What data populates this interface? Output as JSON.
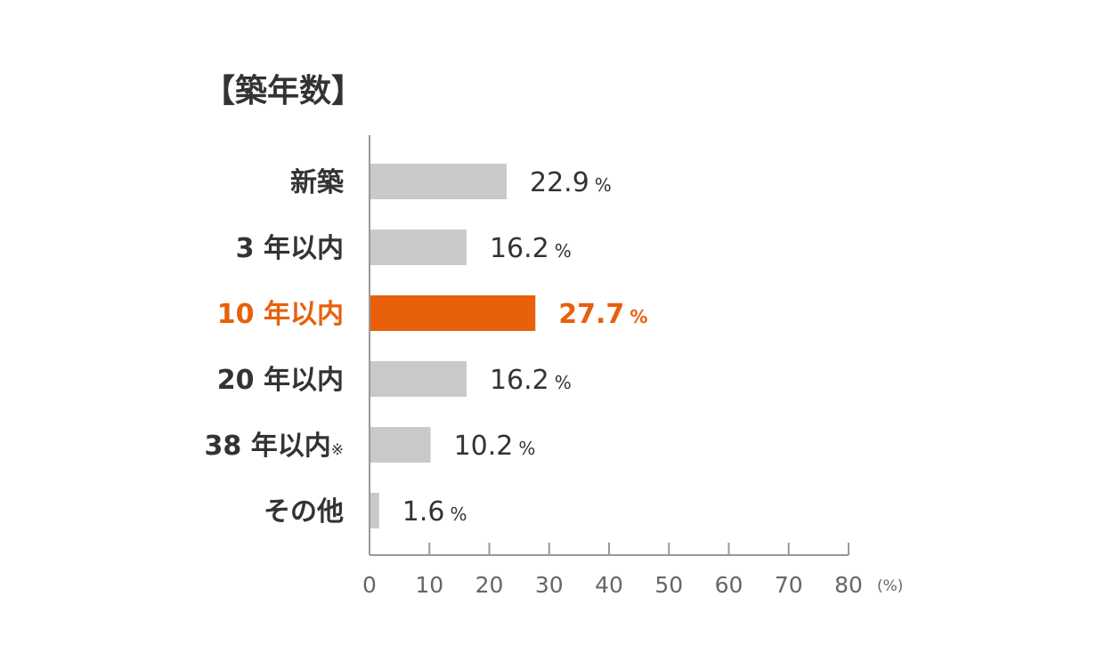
{
  "chart_data": {
    "type": "bar",
    "orientation": "horizontal",
    "title": "【築年数】",
    "categories": [
      "新築",
      "3 年以内",
      "10 年以内",
      "20 年以内",
      "38 年以内",
      "その他"
    ],
    "category_notes": [
      "",
      "",
      "",
      "",
      "※",
      ""
    ],
    "values": [
      22.9,
      16.2,
      27.7,
      16.2,
      10.2,
      1.6
    ],
    "value_unit": "%",
    "highlight_index": 2,
    "xlim": [
      0,
      80
    ],
    "xticks": [
      0,
      10,
      20,
      30,
      40,
      50,
      60,
      70,
      80
    ],
    "xunit": "(%)",
    "grid": false,
    "colors": {
      "bar": "#c8c9c8",
      "highlight": "#e8600c",
      "text": "#333333",
      "axis": "#999999",
      "tick_text": "#666666"
    }
  }
}
